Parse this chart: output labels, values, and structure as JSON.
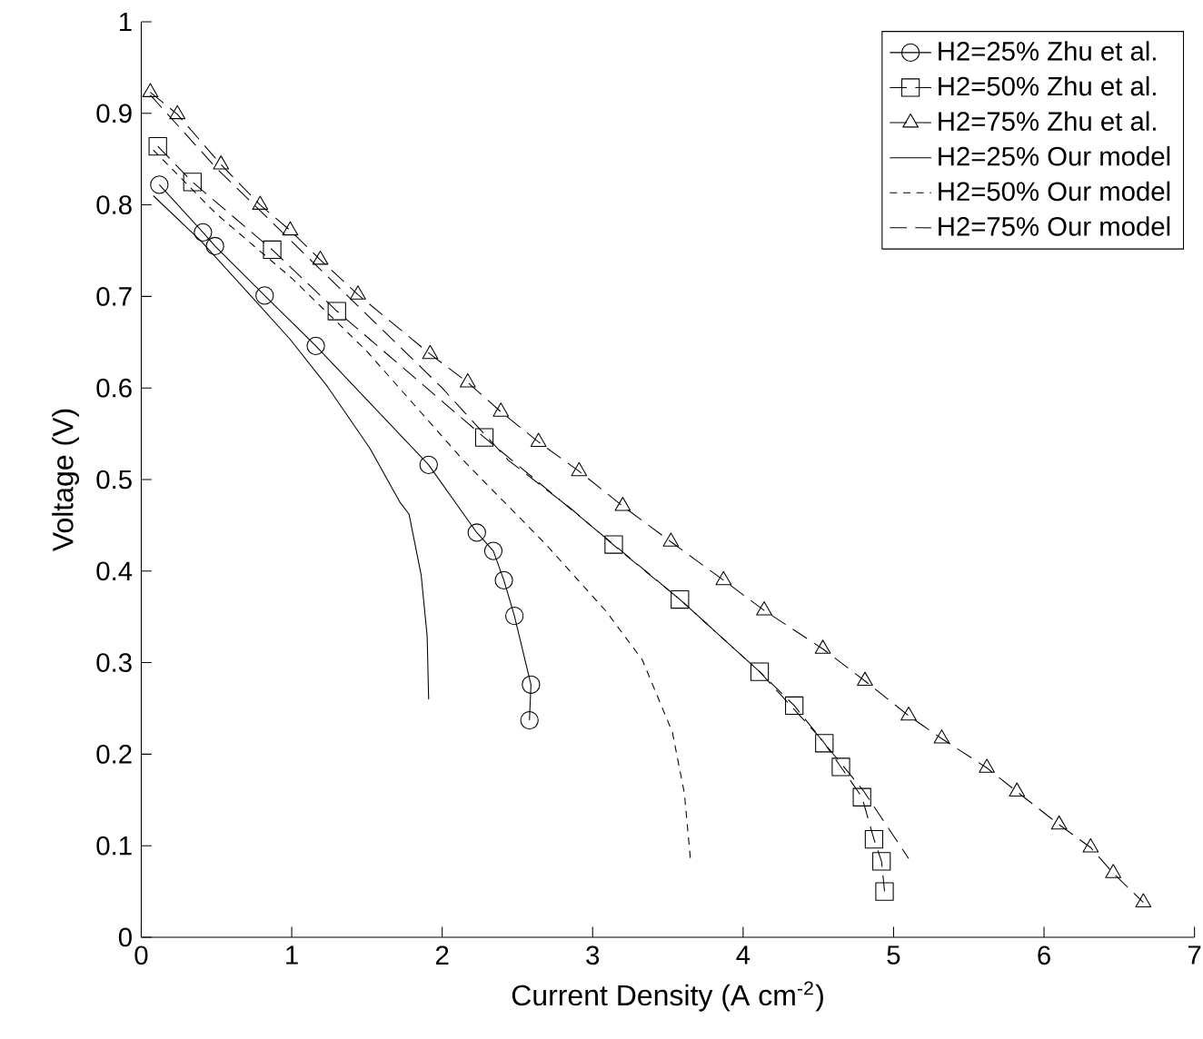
{
  "chart_data": {
    "type": "line",
    "xlabel": "Current Density (A cm$^{-2}$)",
    "ylabel": "Voltage (V)",
    "xlim": [
      0,
      7
    ],
    "ylim": [
      0,
      1
    ],
    "xticks": [
      0,
      1,
      2,
      3,
      4,
      5,
      6,
      7
    ],
    "yticks": [
      0,
      0.1,
      0.2,
      0.3,
      0.4,
      0.5,
      0.6,
      0.7,
      0.8,
      0.9,
      1
    ],
    "grid": false,
    "legend": "top right",
    "series": [
      {
        "name": "H2=25% Zhu et al.",
        "color": "#000000",
        "marker": "circle",
        "line_style": "solid",
        "x": [
          0.12,
          0.41,
          0.49,
          0.82,
          1.16,
          1.91,
          2.23,
          2.34,
          2.41,
          2.48,
          2.59,
          2.58
        ],
        "values": [
          0.822,
          0.77,
          0.755,
          0.701,
          0.646,
          0.516,
          0.442,
          0.422,
          0.39,
          0.351,
          0.276,
          0.237
        ]
      },
      {
        "name": "H2=50% Zhu et al.",
        "color": "#000000",
        "marker": "square",
        "line_style": "dashed",
        "x": [
          0.11,
          0.34,
          0.87,
          1.3,
          2.28,
          3.14,
          3.58,
          4.11,
          4.34,
          4.54,
          4.65,
          4.79,
          4.87,
          4.92,
          4.94
        ],
        "values": [
          0.864,
          0.825,
          0.751,
          0.684,
          0.546,
          0.429,
          0.369,
          0.29,
          0.253,
          0.212,
          0.186,
          0.153,
          0.107,
          0.083,
          0.05
        ]
      },
      {
        "name": "H2=75% Zhu et al.",
        "color": "#000000",
        "marker": "triangle",
        "line_style": "dashed",
        "x": [
          0.06,
          0.24,
          0.53,
          0.79,
          0.99,
          1.19,
          1.44,
          1.92,
          2.17,
          2.39,
          2.64,
          2.91,
          3.2,
          3.52,
          3.87,
          4.14,
          4.53,
          4.81,
          5.1,
          5.32,
          5.62,
          5.82,
          6.1,
          6.31,
          6.46,
          6.66
        ],
        "values": [
          0.923,
          0.899,
          0.844,
          0.8,
          0.772,
          0.74,
          0.702,
          0.637,
          0.606,
          0.574,
          0.541,
          0.509,
          0.471,
          0.432,
          0.39,
          0.357,
          0.315,
          0.28,
          0.242,
          0.217,
          0.185,
          0.159,
          0.123,
          0.098,
          0.07,
          0.038
        ]
      },
      {
        "name": "H2=25% Our model",
        "color": "#000000",
        "marker": "none",
        "line_style": "solid",
        "x": [
          0.08,
          0.4,
          0.77,
          0.99,
          1.24,
          1.52,
          1.72,
          1.78,
          1.86,
          1.9,
          1.91
        ],
        "values": [
          0.81,
          0.76,
          0.693,
          0.653,
          0.601,
          0.534,
          0.475,
          0.462,
          0.396,
          0.329,
          0.26
        ]
      },
      {
        "name": "H2=50% Our model",
        "color": "#000000",
        "marker": "none",
        "line_style": "dotted",
        "x": [
          0.08,
          0.5,
          1.0,
          1.5,
          2.14,
          2.69,
          3.09,
          3.33,
          3.53,
          3.61,
          3.65
        ],
        "values": [
          0.86,
          0.79,
          0.72,
          0.64,
          0.521,
          0.429,
          0.356,
          0.303,
          0.224,
          0.157,
          0.085
        ]
      },
      {
        "name": "H2=75% Our model",
        "color": "#000000",
        "marker": "none",
        "line_style": "dashed",
        "x": [
          0.06,
          0.5,
          1.0,
          1.5,
          2.0,
          2.44,
          2.85,
          3.2,
          3.58,
          4.11,
          4.5,
          4.8,
          5.1
        ],
        "values": [
          0.92,
          0.84,
          0.76,
          0.68,
          0.6,
          0.521,
          0.469,
          0.42,
          0.369,
          0.29,
          0.22,
          0.16,
          0.086
        ]
      }
    ]
  }
}
